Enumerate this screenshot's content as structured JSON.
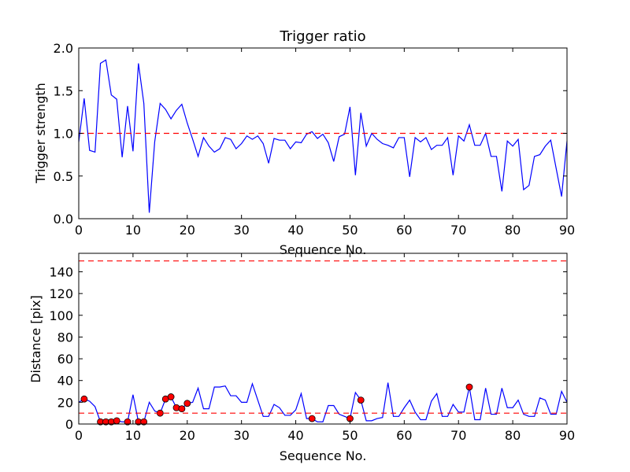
{
  "chart_data": [
    {
      "type": "line",
      "title": "Trigger ratio",
      "xlabel": "Sequence No.",
      "ylabel": "Trigger strength",
      "xlim": [
        0,
        90
      ],
      "ylim": [
        0,
        2.0
      ],
      "xticks": [
        "0",
        "10",
        "20",
        "30",
        "40",
        "50",
        "60",
        "70",
        "80",
        "90"
      ],
      "yticks": [
        "0.0",
        "0.5",
        "1.0",
        "1.5",
        "2.0"
      ],
      "grid": false,
      "series": [
        {
          "style": "line",
          "color": "#0000ff",
          "x": [
            0,
            1,
            2,
            3,
            4,
            5,
            6,
            7,
            8,
            9,
            10,
            11,
            12,
            13,
            14,
            15,
            16,
            17,
            18,
            19,
            20,
            21,
            22,
            23,
            24,
            25,
            26,
            27,
            28,
            29,
            30,
            31,
            32,
            33,
            34,
            35,
            36,
            37,
            38,
            39,
            40,
            41,
            42,
            43,
            44,
            45,
            46,
            47,
            48,
            49,
            50,
            51,
            52,
            53,
            54,
            55,
            56,
            57,
            58,
            59,
            60,
            61,
            62,
            63,
            64,
            65,
            66,
            67,
            68,
            69,
            70,
            71,
            72,
            73,
            74,
            75,
            76,
            77,
            78,
            79,
            80,
            81,
            82,
            83,
            84,
            85,
            86,
            87,
            88,
            89,
            90
          ],
          "values": [
            0.9,
            1.41,
            0.8,
            0.78,
            1.82,
            1.86,
            1.45,
            1.4,
            0.72,
            1.32,
            0.79,
            1.82,
            1.35,
            0.07,
            0.9,
            1.35,
            1.28,
            1.17,
            1.27,
            1.34,
            1.12,
            0.93,
            0.73,
            0.95,
            0.85,
            0.78,
            0.82,
            0.95,
            0.93,
            0.82,
            0.88,
            0.97,
            0.93,
            0.97,
            0.88,
            0.65,
            0.94,
            0.92,
            0.92,
            0.82,
            0.9,
            0.89,
            0.99,
            1.02,
            0.94,
            0.99,
            0.89,
            0.67,
            0.96,
            0.99,
            1.31,
            0.51,
            1.24,
            0.85,
            1.0,
            0.93,
            0.88,
            0.86,
            0.83,
            0.95,
            0.95,
            0.49,
            0.95,
            0.9,
            0.95,
            0.81,
            0.86,
            0.86,
            0.95,
            0.51,
            0.97,
            0.91,
            1.1,
            0.86,
            0.86,
            1.0,
            0.73,
            0.73,
            0.32,
            0.91,
            0.85,
            0.93,
            0.34,
            0.39,
            0.73,
            0.75,
            0.85,
            0.92,
            0.59,
            0.26,
            0.91
          ]
        },
        {
          "style": "dashed",
          "color": "#ff0000",
          "x": [
            0,
            90
          ],
          "values": [
            1.0,
            1.0
          ]
        }
      ]
    },
    {
      "type": "line",
      "title": "",
      "xlabel": "Sequence No.",
      "ylabel": "Distance [pix]",
      "xlim": [
        0,
        90
      ],
      "ylim": [
        0,
        157
      ],
      "xticks": [
        "0",
        "10",
        "20",
        "30",
        "40",
        "50",
        "60",
        "70",
        "80",
        "90"
      ],
      "yticks": [
        "0",
        "20",
        "40",
        "60",
        "80",
        "100",
        "120",
        "140"
      ],
      "grid": false,
      "series": [
        {
          "style": "line",
          "color": "#0000ff",
          "x": [
            0,
            1,
            2,
            3,
            4,
            5,
            6,
            7,
            8,
            9,
            10,
            11,
            12,
            13,
            14,
            15,
            16,
            17,
            18,
            19,
            20,
            21,
            22,
            23,
            24,
            25,
            26,
            27,
            28,
            29,
            30,
            31,
            32,
            33,
            34,
            35,
            36,
            37,
            38,
            39,
            40,
            41,
            42,
            43,
            44,
            45,
            46,
            47,
            48,
            49,
            50,
            51,
            52,
            53,
            54,
            55,
            56,
            57,
            58,
            59,
            60,
            61,
            62,
            63,
            64,
            65,
            66,
            67,
            68,
            69,
            70,
            71,
            72,
            73,
            74,
            75,
            76,
            77,
            78,
            79,
            80,
            81,
            82,
            83,
            84,
            85,
            86,
            87,
            88,
            89,
            90
          ],
          "values": [
            20,
            23,
            21,
            16,
            2,
            2,
            2,
            3,
            2,
            2,
            27,
            2,
            2,
            20,
            12,
            10,
            23,
            25,
            15,
            14,
            19,
            20,
            33,
            14,
            14,
            34,
            34,
            35,
            26,
            26,
            20,
            20,
            37,
            22,
            7,
            7,
            18,
            15,
            8,
            8,
            13,
            28,
            5,
            5,
            2,
            2,
            17,
            17,
            9,
            7,
            5,
            29,
            22,
            3,
            3,
            5,
            6,
            38,
            7,
            7,
            15,
            22,
            11,
            4,
            4,
            21,
            28,
            7,
            7,
            18,
            11,
            11,
            34,
            4,
            4,
            33,
            9,
            9,
            33,
            15,
            15,
            22,
            9,
            7,
            7,
            24,
            22,
            9,
            9,
            30,
            20
          ]
        },
        {
          "style": "markers",
          "color": "#ff0000",
          "x": [
            1,
            4,
            5,
            6,
            7,
            9,
            11,
            12,
            15,
            16,
            17,
            18,
            19,
            20,
            43,
            50,
            52,
            72
          ],
          "values": [
            23,
            2,
            2,
            2,
            3,
            2,
            2,
            2,
            10,
            23,
            25,
            15,
            14,
            19,
            5,
            5,
            22,
            34
          ]
        },
        {
          "style": "dashed",
          "color": "#ff0000",
          "x": [
            0,
            90
          ],
          "values": [
            150,
            150
          ]
        },
        {
          "style": "dashed",
          "color": "#ff0000",
          "x": [
            0,
            90
          ],
          "values": [
            10,
            10
          ]
        }
      ]
    }
  ]
}
